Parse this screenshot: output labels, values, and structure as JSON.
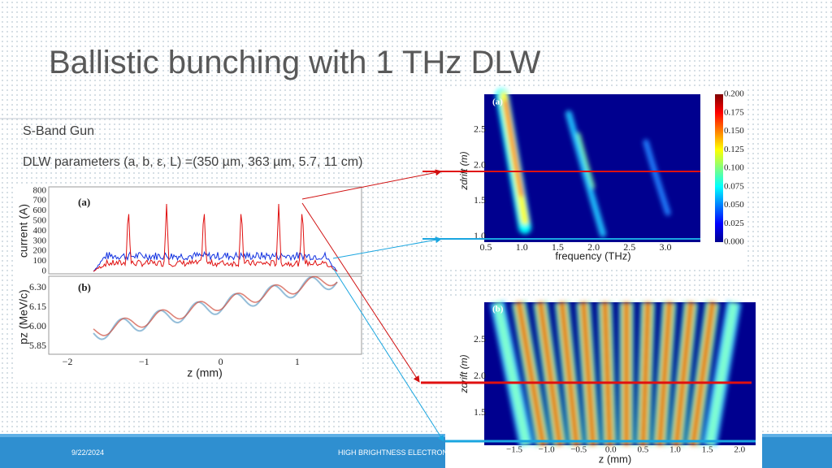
{
  "title": "Ballistic bunching with 1 THz DLW",
  "bullets": [
    "S-Band Gun",
    "DLW parameters (a, b, ε, L) =(350 µm, 363 µm, 5.7, 11 cm)"
  ],
  "footer": {
    "date": "9/22/2024",
    "text": "HIGH BRIGHTNESS ELECTRON BEA"
  },
  "left_figure": {
    "panel_a": {
      "label": "(a)",
      "ylabel": "current (A)",
      "yticks": [
        "0",
        "100",
        "200",
        "300",
        "400",
        "500",
        "600",
        "700",
        "800"
      ]
    },
    "panel_b": {
      "label": "(b)",
      "ylabel": "pz (MeV/c)",
      "yticks": [
        "5.85",
        "6.00",
        "6.15",
        "6.30"
      ]
    },
    "xticks": [
      "−2",
      "−1",
      "0",
      "1"
    ],
    "xlabel": "z (mm)"
  },
  "spectrum_figure": {
    "label": "(a)",
    "ylabel": "zdrift (m)",
    "yticks": [
      "1.0",
      "1.5",
      "2.0",
      "2.5"
    ],
    "xticks": [
      "0.5",
      "1.0",
      "1.5",
      "2.0",
      "2.5",
      "3.0"
    ],
    "xlabel": "frequency (THz)",
    "colorbar_ticks": [
      "0.000",
      "0.025",
      "0.050",
      "0.075",
      "0.100",
      "0.125",
      "0.150",
      "0.175",
      "0.200"
    ]
  },
  "profile_figure": {
    "label": "(b)",
    "ylabel": "zdrift (m)",
    "yticks": [
      "1.5",
      "2.0",
      "2.5"
    ],
    "xticks": [
      "−1.5",
      "−1.0",
      "−0.5",
      "0.0",
      "0.5",
      "1.0",
      "1.5",
      "2.0"
    ],
    "xlabel": "z (mm)"
  }
}
